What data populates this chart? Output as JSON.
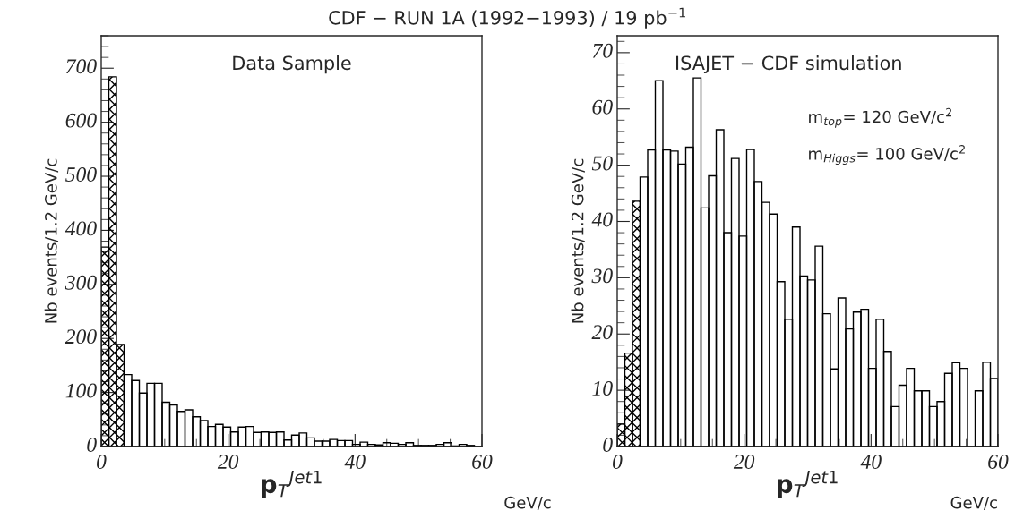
{
  "chart_data": [
    {
      "type": "histogram",
      "title": "CDF − RUN 1A (1992−1993) / 19 pb$^{−1}$",
      "xlabel": "p$_{T}$$^{Jet1}$",
      "ylabel": "Nb events/1.2 GeV/c",
      "annotations": [
        "Data Sample",
        "GeV/c"
      ],
      "bins": [
        0,
        1.2,
        2.4,
        3.6,
        4.8,
        6,
        7.2,
        8.4,
        9.6,
        10.8,
        12,
        13.2,
        14.4,
        15.6,
        16.8,
        18,
        19.2,
        20.4,
        21.6,
        22.8,
        24,
        25.2,
        26.4,
        27.6,
        28.8,
        30,
        31.2,
        32.4,
        33.6,
        34.8,
        36,
        37.2,
        38.4,
        39.6,
        40.8,
        42,
        43.2,
        44.4,
        45.6,
        46.8,
        48,
        49.2,
        50.4,
        51.6,
        52.8,
        54,
        55.2,
        56.4,
        57.6,
        58.8,
        60
      ],
      "series": [
        {
          "color": "#000000",
          "values": [
            null,
            null,
            null,
            133,
            122,
            99,
            117,
            117,
            82,
            77,
            65,
            68,
            55,
            48,
            37,
            41,
            36,
            27,
            36,
            37,
            26,
            27,
            26,
            27,
            12,
            21,
            25,
            16,
            10,
            10,
            13,
            11,
            11,
            4,
            8,
            4,
            3,
            7,
            6,
            4,
            7,
            2,
            2,
            2,
            4,
            7,
            1,
            4,
            2,
            0
          ]
        },
        {
          "color": "#000000",
          "values": [
            369,
            684,
            189,
            null,
            null,
            null,
            null,
            null,
            null,
            null,
            null,
            null,
            null,
            null,
            null,
            null,
            null,
            null,
            null,
            null,
            null,
            null,
            null,
            null,
            null,
            null,
            null,
            null,
            null,
            null,
            null,
            null,
            null,
            null,
            null,
            null,
            null,
            null,
            null,
            null,
            null,
            null,
            null,
            null,
            null,
            null,
            null,
            null,
            null,
            null
          ]
        }
      ],
      "xlim": [
        0,
        60
      ],
      "xticks": [
        0,
        20,
        40,
        60
      ],
      "ylim": [
        0,
        760
      ],
      "yticks": [
        0,
        100,
        200,
        300,
        400,
        500,
        600,
        700
      ],
      "grid": false,
      "legend": false
    },
    {
      "type": "histogram",
      "xlabel": "p$_{T}$$^{Jet1}$",
      "ylabel": "Nb events/1.2 GeV/c",
      "annotations": [
        "ISAJET − CDF simulation",
        "m$_{top}$= 120 GeV/c$^{2}$",
        "m$_{Higgs}$= 100 GeV/c$^{2}$",
        "GeV/c"
      ],
      "bins": [
        0,
        1.2,
        2.4,
        3.6,
        4.8,
        6,
        7.2,
        8.4,
        9.6,
        10.8,
        12,
        13.2,
        14.4,
        15.6,
        16.8,
        18,
        19.2,
        20.4,
        21.6,
        22.8,
        24,
        25.2,
        26.4,
        27.6,
        28.8,
        30,
        31.2,
        32.4,
        33.6,
        34.8,
        36,
        37.2,
        38.4,
        39.6,
        40.8,
        42,
        43.2,
        44.4,
        45.6,
        46.8,
        48,
        49.2,
        50.4,
        51.6,
        52.8,
        54,
        55.2,
        56.4,
        57.6,
        58.8,
        60
      ],
      "series": [
        {
          "color": "#000000",
          "values": [
            null,
            null,
            null,
            47.9,
            52.7,
            65,
            52.7,
            52.5,
            50.2,
            53.2,
            65.5,
            42.4,
            48.1,
            56.3,
            38,
            51.2,
            37.4,
            52.8,
            47.1,
            43.4,
            41.3,
            29.3,
            22.6,
            39,
            30.3,
            29.6,
            35.6,
            23.6,
            13.8,
            26.4,
            20.9,
            23.9,
            24.4,
            13.9,
            22.6,
            16.9,
            7.1,
            10.9,
            13.9,
            9.9,
            9.9,
            7.1,
            8,
            13,
            14.9,
            13.9,
            0,
            9.9,
            15,
            12.1
          ]
        },
        {
          "color": "#000000",
          "values": [
            4,
            16.6,
            43.6,
            null,
            null,
            null,
            null,
            null,
            null,
            null,
            null,
            null,
            null,
            null,
            null,
            null,
            null,
            null,
            null,
            null,
            null,
            null,
            null,
            null,
            null,
            null,
            null,
            null,
            null,
            null,
            null,
            null,
            null,
            null,
            null,
            null,
            null,
            null,
            null,
            null,
            null,
            null,
            null,
            null,
            null,
            null,
            null,
            null,
            null,
            null
          ]
        }
      ],
      "xlim": [
        0,
        60
      ],
      "xticks": [
        0,
        20,
        40,
        60
      ],
      "ylim": [
        0,
        73
      ],
      "yticks": [
        0,
        10,
        20,
        30,
        40,
        50,
        60,
        70
      ],
      "grid": false,
      "legend": false
    }
  ]
}
